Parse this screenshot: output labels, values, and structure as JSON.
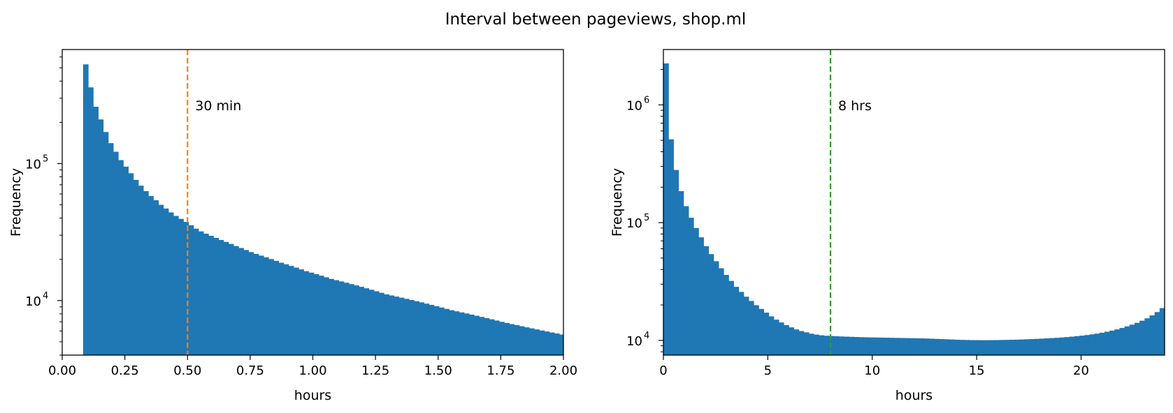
{
  "title": "Interval between pageviews, shop.ml",
  "colors": {
    "bar": "#1f77b4",
    "line_left": "#ff7f0e",
    "line_right": "#2ca02c",
    "axes": "#000000"
  },
  "chart_data": [
    {
      "type": "bar",
      "title": "",
      "xlabel": "hours",
      "ylabel": "Frequency",
      "xlim": [
        0,
        2
      ],
      "ylim": [
        4000,
        680000
      ],
      "yscale": "log",
      "grid": false,
      "xticks": [
        "0.00",
        "0.25",
        "0.50",
        "0.75",
        "1.00",
        "1.25",
        "1.50",
        "1.75",
        "2.00"
      ],
      "yticks": [
        {
          "label_base": "10",
          "label_exp": "4",
          "value": 10000
        },
        {
          "label_base": "10",
          "label_exp": "5",
          "value": 100000
        }
      ],
      "bin_start": 0.0833,
      "bin_width": 0.02,
      "values": [
        530000,
        360000,
        260000,
        210000,
        170000,
        141000,
        122000,
        106000,
        95000,
        85000,
        76000,
        69000,
        63000,
        58000,
        54000,
        50000,
        47000,
        44000,
        41500,
        39500,
        37500,
        35500,
        33500,
        32000,
        30800,
        29700,
        28700,
        27700,
        26800,
        25900,
        25000,
        24200,
        23400,
        22600,
        21900,
        21300,
        20700,
        20100,
        19500,
        18900,
        18400,
        17900,
        17400,
        16900,
        16400,
        16000,
        15600,
        15200,
        14800,
        14400,
        14100,
        13800,
        13500,
        13200,
        12900,
        12600,
        12300,
        12000,
        11700,
        11400,
        11100,
        10900,
        10700,
        10500,
        10300,
        10100,
        9900,
        9700,
        9500,
        9300,
        9100,
        8900,
        8700,
        8500,
        8350,
        8200,
        8050,
        7900,
        7750,
        7600,
        7450,
        7300,
        7150,
        7000,
        6870,
        6740,
        6620,
        6500,
        6380,
        6270,
        6160,
        6050,
        5950,
        5850,
        5750,
        5650,
        5560,
        5470,
        5380,
        5300,
        5220,
        5140,
        5060,
        4980,
        4900,
        4820,
        4760,
        4720,
        4800,
        4900
      ],
      "vline": {
        "x": 0.5,
        "label": "30 min"
      }
    },
    {
      "type": "bar",
      "title": "",
      "xlabel": "hours",
      "ylabel": "Frequency",
      "xlim": [
        0,
        24
      ],
      "ylim": [
        7500,
        2950000
      ],
      "yscale": "log",
      "grid": false,
      "xticks": [
        "0",
        "5",
        "10",
        "15",
        "20"
      ],
      "xtick_values": [
        0,
        5,
        10,
        15,
        20
      ],
      "yticks": [
        {
          "label_base": "10",
          "label_exp": "4",
          "value": 10000
        },
        {
          "label_base": "10",
          "label_exp": "5",
          "value": 100000
        },
        {
          "label_base": "10",
          "label_exp": "6",
          "value": 1000000
        }
      ],
      "bin_start": 0,
      "bin_width": 0.24,
      "values": [
        2250000,
        510000,
        280000,
        185000,
        138000,
        110000,
        90000,
        75000,
        63000,
        54000,
        47000,
        41000,
        36000,
        32000,
        28500,
        25800,
        23500,
        21600,
        19900,
        18500,
        17200,
        16000,
        15000,
        14200,
        13500,
        12900,
        12400,
        12000,
        11700,
        11400,
        11200,
        11050,
        10950,
        10900,
        10850,
        10800,
        10760,
        10720,
        10680,
        10650,
        10620,
        10600,
        10580,
        10560,
        10540,
        10520,
        10500,
        10480,
        10460,
        10440,
        10420,
        10400,
        10370,
        10340,
        10300,
        10260,
        10220,
        10180,
        10140,
        10100,
        10080,
        10060,
        10050,
        10040,
        10040,
        10050,
        10060,
        10080,
        10100,
        10120,
        10150,
        10180,
        10220,
        10260,
        10300,
        10350,
        10400,
        10460,
        10520,
        10590,
        10670,
        10760,
        10860,
        10970,
        11100,
        11250,
        11420,
        11620,
        11850,
        12100,
        12400,
        12750,
        13150,
        13600,
        14100,
        14700,
        15400,
        16300,
        17400,
        18800,
        20400
      ],
      "vline": {
        "x": 8,
        "label": "8 hrs"
      }
    }
  ]
}
